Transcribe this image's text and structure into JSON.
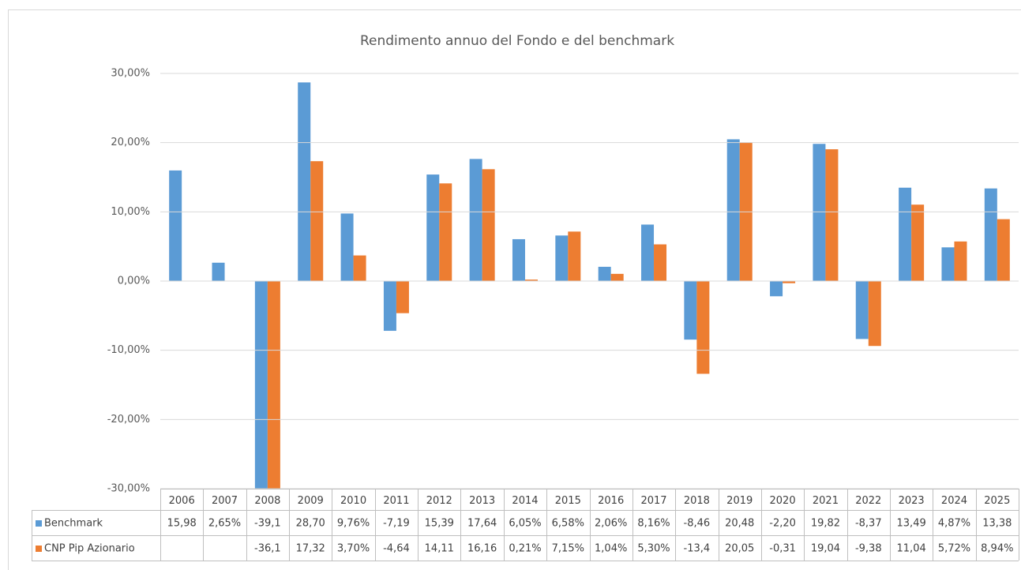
{
  "chart_data": {
    "type": "bar",
    "title": "Rendimento annuo del Fondo e del benchmark",
    "categories": [
      "2006",
      "2007",
      "2008",
      "2009",
      "2010",
      "2011",
      "2012",
      "2013",
      "2014",
      "2015",
      "2016",
      "2017",
      "2018",
      "2019",
      "2020",
      "2021",
      "2022",
      "2023",
      "2024",
      "2025"
    ],
    "series": [
      {
        "name": "Benchmark",
        "color": "#5b9bd5",
        "values": [
          15.98,
          2.65,
          -39.1,
          28.7,
          9.76,
          -7.19,
          15.39,
          17.64,
          6.05,
          6.58,
          2.06,
          8.16,
          -8.46,
          20.48,
          -2.2,
          19.82,
          -8.37,
          13.49,
          4.87,
          13.38
        ],
        "value_labels": [
          "15,98",
          "2,65%",
          "-39,1",
          "28,70",
          "9,76%",
          "-7,19",
          "15,39",
          "17,64",
          "6,05%",
          "6,58%",
          "2,06%",
          "8,16%",
          "-8,46",
          "20,48",
          "-2,20",
          "19,82",
          "-8,37",
          "13,49",
          "4,87%",
          "13,38"
        ]
      },
      {
        "name": "CNP Pip Azionario",
        "color": "#ed7d31",
        "values": [
          null,
          null,
          -36.1,
          17.32,
          3.7,
          -4.64,
          14.11,
          16.16,
          0.21,
          7.15,
          1.04,
          5.3,
          -13.4,
          20.05,
          -0.31,
          19.04,
          -9.38,
          11.04,
          5.72,
          8.94
        ],
        "value_labels": [
          null,
          null,
          "-36,1",
          "17,32",
          "3,70%",
          "-4,64",
          "14,11",
          "16,16",
          "0,21%",
          "7,15%",
          "1,04%",
          "5,30%",
          "-13,4",
          "20,05",
          "-0,31",
          "19,04",
          "-9,38",
          "11,04",
          "5,72%",
          "8,94%"
        ]
      }
    ],
    "ylim": [
      -30,
      30
    ],
    "yticks": [
      {
        "value": -30,
        "label": "-30,00%"
      },
      {
        "value": -20,
        "label": "-20,00%"
      },
      {
        "value": -10,
        "label": "-10,00%"
      },
      {
        "value": 0,
        "label": "0,00%"
      },
      {
        "value": 10,
        "label": "10,00%"
      },
      {
        "value": 20,
        "label": "20,00%"
      },
      {
        "value": 30,
        "label": "30,00%"
      }
    ],
    "grid": true
  }
}
